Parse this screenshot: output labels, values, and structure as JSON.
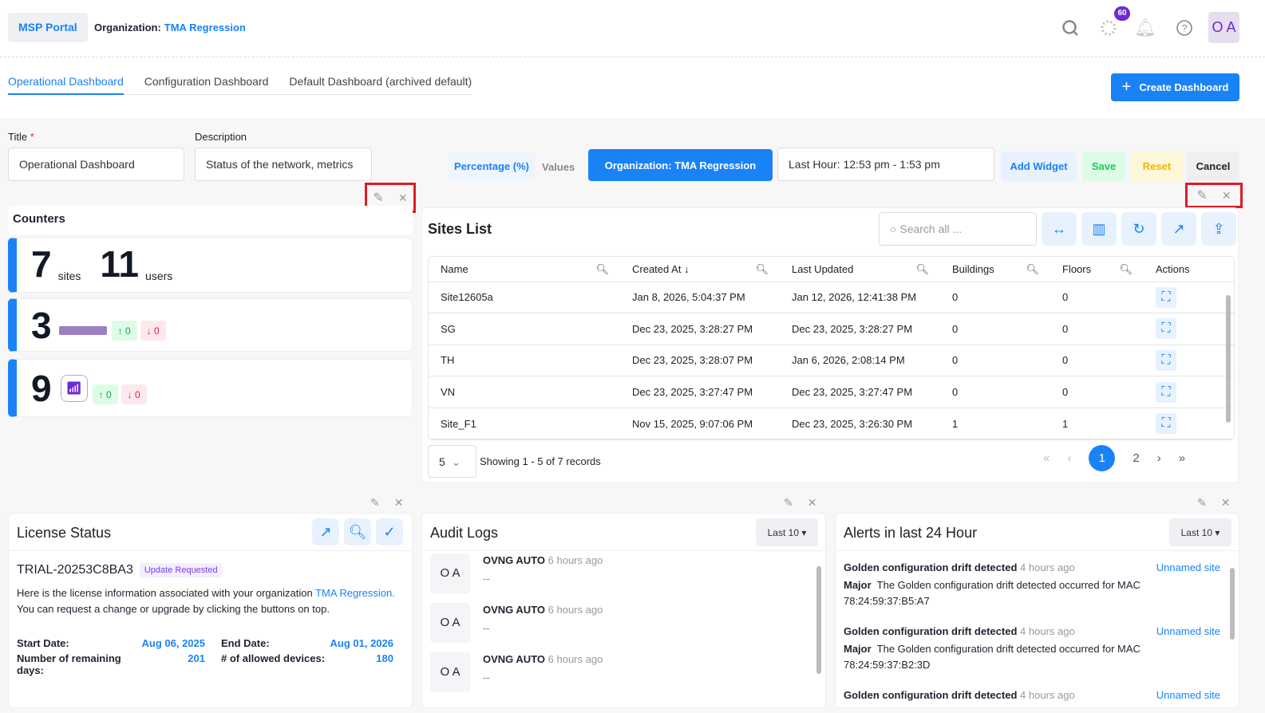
{
  "header": {
    "portal": "MSP Portal",
    "org_label": "Organization:",
    "org_name": "TMA Regression",
    "notif_count": "60",
    "avatar": "O A"
  },
  "tabs": [
    {
      "label": "Operational Dashboard",
      "active": true
    },
    {
      "label": "Configuration Dashboard"
    },
    {
      "label": "Default Dashboard (archived default)"
    }
  ],
  "create_label": "Create Dashboard",
  "form": {
    "title_label": "Title",
    "required": "*",
    "title_value": "Operational Dashboard",
    "desc_label": "Description",
    "desc_value": "Status of the network, metrics"
  },
  "toolbar": {
    "percentage": "Percentage (%)",
    "values": "Values",
    "org_button": "Organization: TMA Regression",
    "time_range": "Last Hour: 12:53 pm - 1:53 pm",
    "add_widget": "Add Widget",
    "save": "Save",
    "reset": "Reset",
    "cancel": "Cancel"
  },
  "counters": {
    "title": "Counters",
    "sites": "7",
    "sites_unit": "sites",
    "users": "11",
    "users_unit": "users",
    "switches": "3",
    "switches_up": "0",
    "switches_down": "0",
    "aps": "9",
    "aps_up": "0",
    "aps_down": "0"
  },
  "sites": {
    "title": "Sites List",
    "search_placeholder": "Search all ...",
    "columns": [
      "Name",
      "Created At",
      "Last Updated",
      "Buildings",
      "Floors",
      "Actions"
    ],
    "rows": [
      [
        "Site12605a",
        "Jan 8, 2026, 5:04:37 PM",
        "Jan 12, 2026, 12:41:38 PM",
        "0",
        "0"
      ],
      [
        "SG",
        "Dec 23, 2025, 3:28:27 PM",
        "Dec 23, 2025, 3:28:27 PM",
        "0",
        "0"
      ],
      [
        "TH",
        "Dec 23, 2025, 3:28:07 PM",
        "Jan 6, 2026, 2:08:14 PM",
        "0",
        "0"
      ],
      [
        "VN",
        "Dec 23, 2025, 3:27:47 PM",
        "Dec 23, 2025, 3:27:47 PM",
        "0",
        "0"
      ],
      [
        "Site_F1",
        "Nov 15, 2025, 9:07:06 PM",
        "Dec 23, 2025, 3:26:30 PM",
        "1",
        "1"
      ]
    ],
    "page_size": "5",
    "showing": "Showing 1 - 5 of 7 records",
    "pages": [
      "1",
      "2"
    ],
    "current_page": "1"
  },
  "license": {
    "title": "License Status",
    "id": "TRIAL-20253C8BA3",
    "status": "Update Requested",
    "text1": "Here is the license information associated with your organization ",
    "org_link": "TMA Regression.",
    "text2": " You can request a change or upgrade by clicking the buttons on top.",
    "start_label": "Start Date:",
    "start": "Aug 06, 2025",
    "end_label": "End Date:",
    "end": "Aug 01, 2026",
    "remaining_label": "Number of remaining days:",
    "remaining": "201",
    "devices_label": "# of allowed devices:",
    "devices": "180"
  },
  "audit": {
    "title": "Audit Logs",
    "filter": "Last 10",
    "items": [
      {
        "avatar": "O A",
        "user": "OVNG AUTO",
        "time": "6 hours ago",
        "detail": "--"
      },
      {
        "avatar": "O A",
        "user": "OVNG AUTO",
        "time": "6 hours ago",
        "detail": "--"
      },
      {
        "avatar": "O A",
        "user": "OVNG AUTO",
        "time": "6 hours ago",
        "detail": "--"
      }
    ]
  },
  "alerts": {
    "title": "Alerts in last 24 Hour",
    "filter": "Last 10",
    "items": [
      {
        "title": "Golden configuration drift detected",
        "time": "4 hours ago",
        "site": "Unnamed site",
        "severity": "Major",
        "msg": "The Golden configuration drift detected occurred for MAC",
        "mac": "78:24:59:37:B5:A7"
      },
      {
        "title": "Golden configuration drift detected",
        "time": "4 hours ago",
        "site": "Unnamed site",
        "severity": "Major",
        "msg": "The Golden configuration drift detected occurred for MAC",
        "mac": "78:24:59:37:B2:3D"
      },
      {
        "title": "Golden configuration drift detected",
        "time": "4 hours ago",
        "site": "Unnamed site"
      }
    ]
  },
  "colors": {
    "accent": "#1a82f7",
    "highlight": "#e01b22",
    "purple": "#6d28d9"
  }
}
